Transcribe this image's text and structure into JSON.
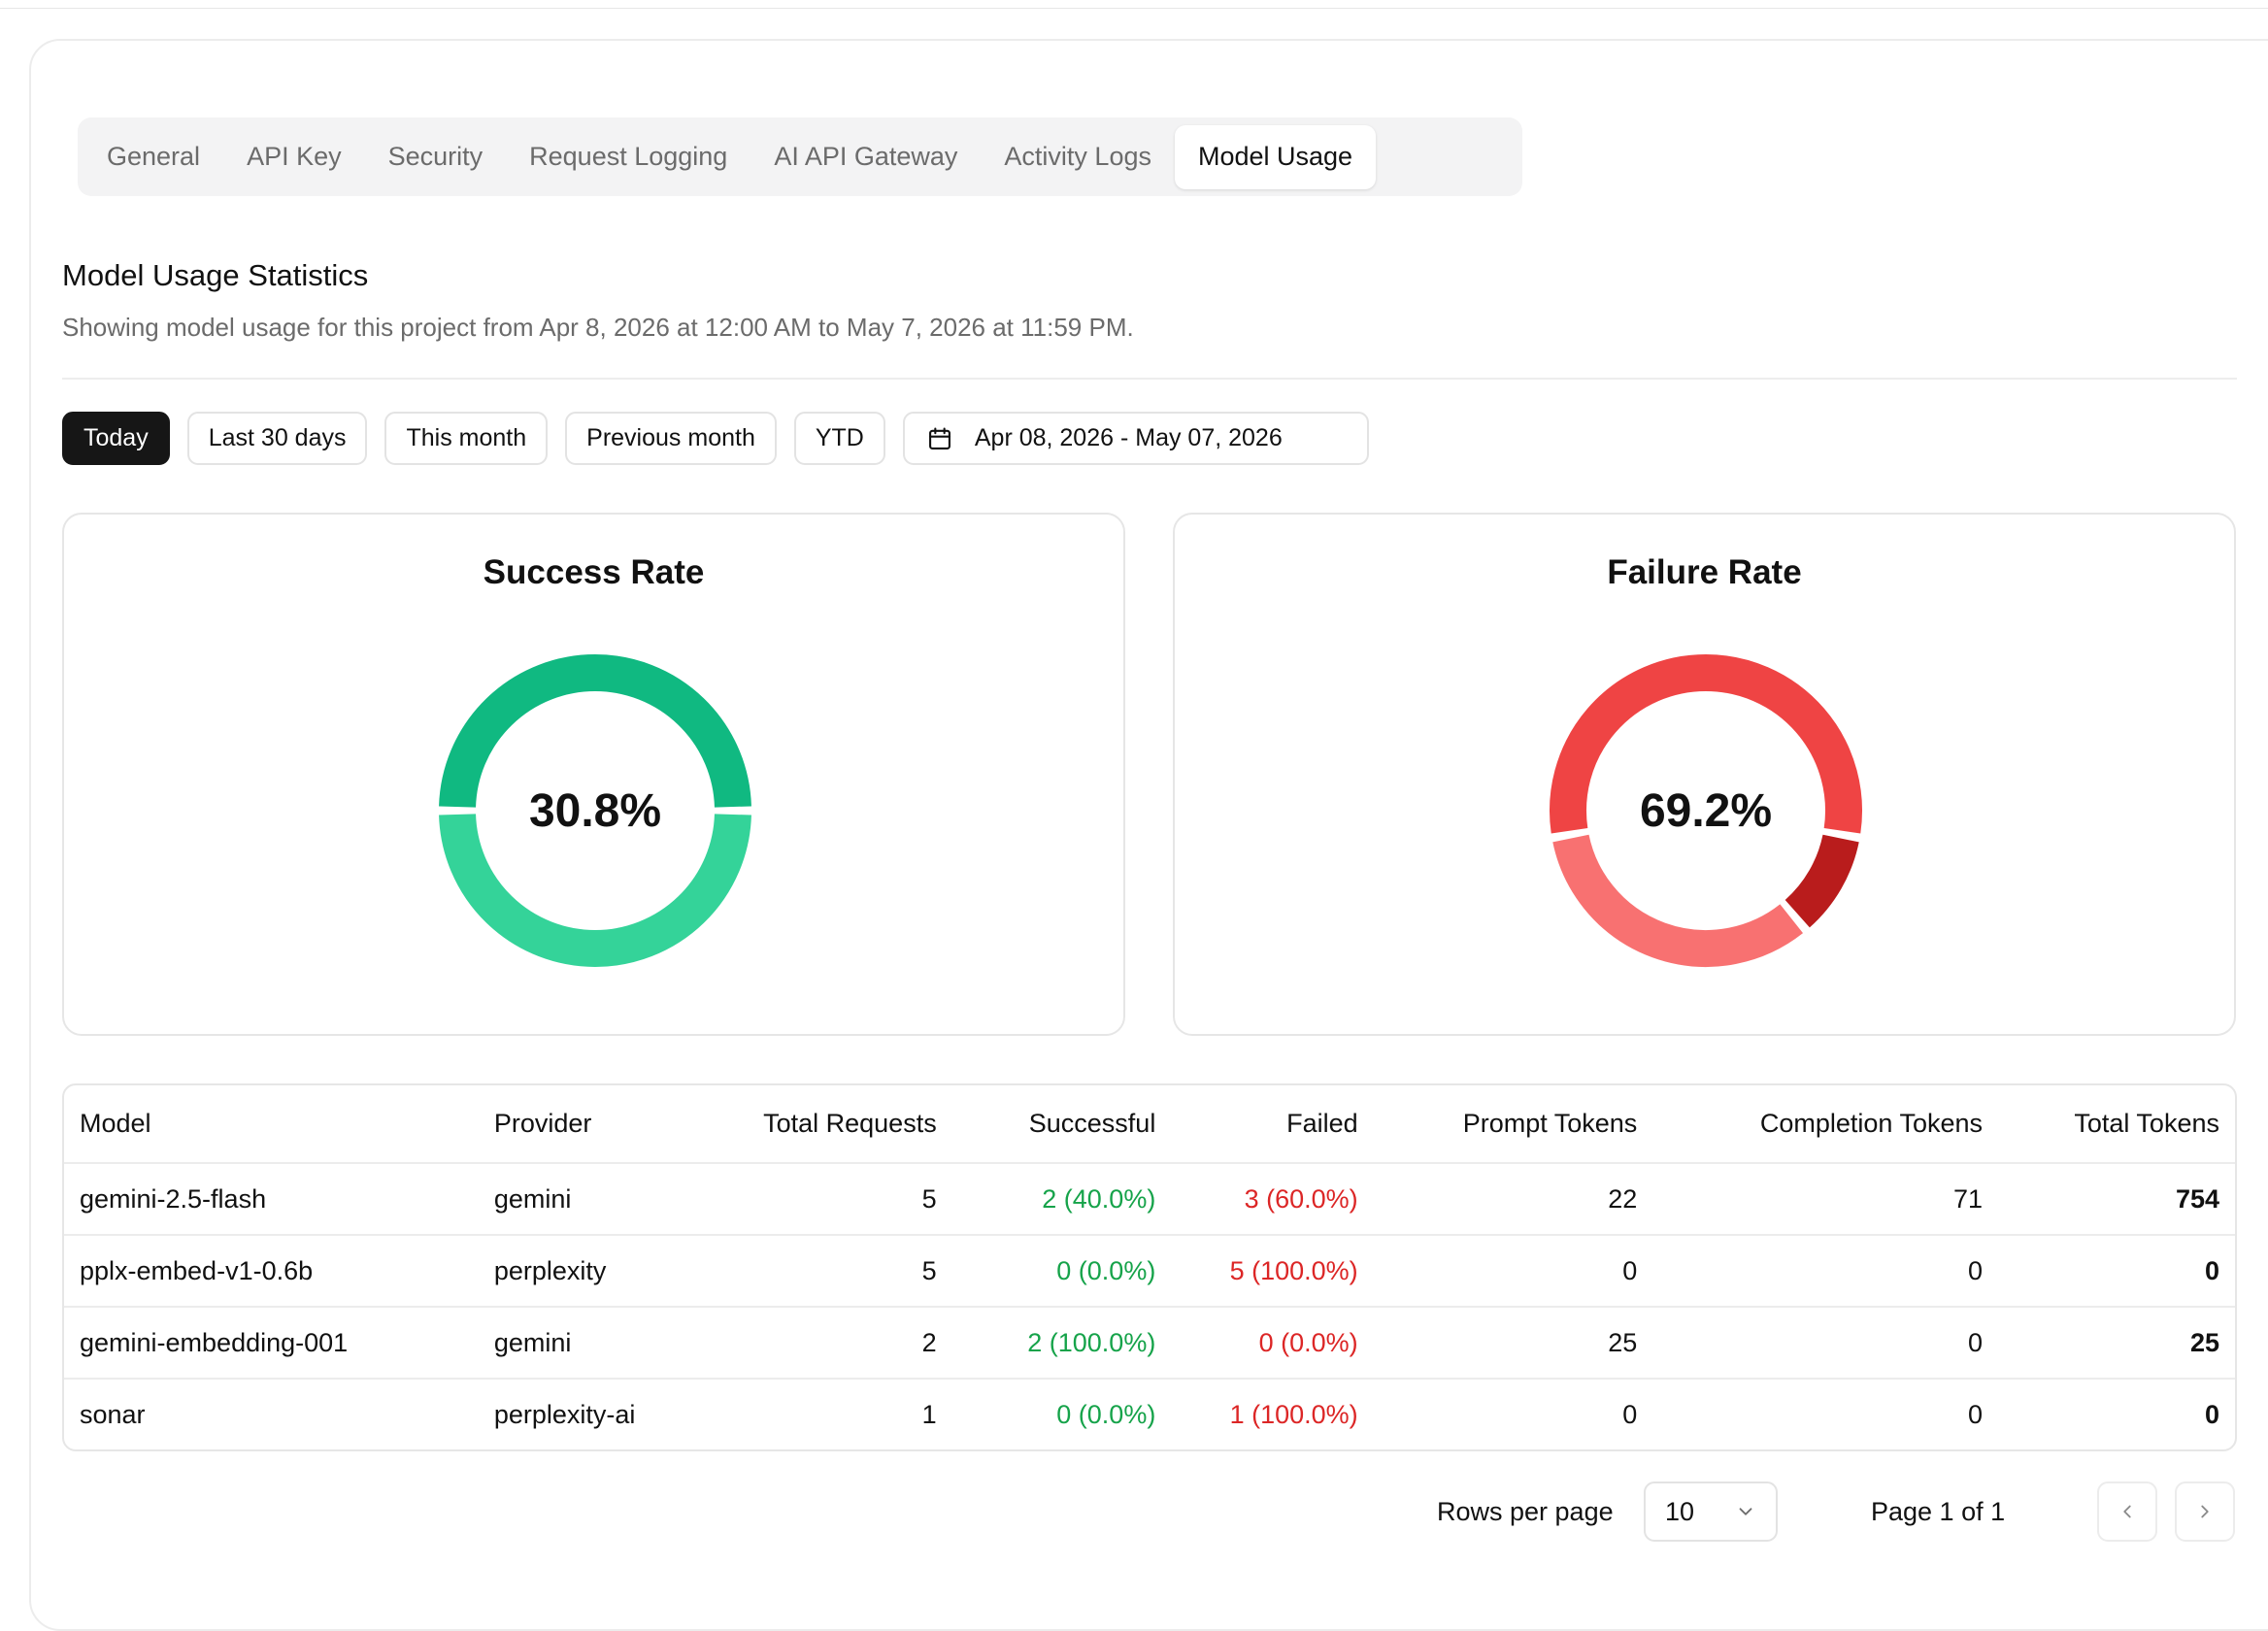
{
  "tabs": [
    "General",
    "API Key",
    "Security",
    "Request Logging",
    "AI API Gateway",
    "Activity Logs",
    "Model Usage"
  ],
  "active_tab": "Model Usage",
  "section": {
    "title": "Model Usage Statistics",
    "subtitle": "Showing model usage for this project from Apr 8, 2026 at 12:00 AM to May 7, 2026 at 11:59 PM."
  },
  "filters": {
    "today": "Today",
    "last30": "Last 30 days",
    "this_month": "This month",
    "previous_month": "Previous month",
    "ytd": "YTD",
    "date_range": "Apr 08, 2026 - May 07, 2026",
    "date_icon": "calendar-icon"
  },
  "charts": {
    "success": {
      "title": "Success Rate",
      "label": "30.8%",
      "colors": [
        "#10b981",
        "#34d399"
      ]
    },
    "failure": {
      "title": "Failure Rate",
      "label": "69.2%",
      "colors": [
        "#ef4444",
        "#b91c1c",
        "#f87171"
      ]
    }
  },
  "chart_data": [
    {
      "type": "pie",
      "title": "Success Rate",
      "center_label": "30.8%",
      "slices": [
        {
          "label": "gemini-2.5-flash",
          "value": 2
        },
        {
          "label": "gemini-embedding-001",
          "value": 2
        }
      ]
    },
    {
      "type": "pie",
      "title": "Failure Rate",
      "center_label": "69.2%",
      "slices": [
        {
          "label": "pplx-embed-v1-0.6b",
          "value": 5
        },
        {
          "label": "sonar",
          "value": 1
        },
        {
          "label": "gemini-2.5-flash",
          "value": 3
        }
      ]
    }
  ],
  "table": {
    "headers": [
      "Model",
      "Provider",
      "Total Requests",
      "Successful",
      "Failed",
      "Prompt Tokens",
      "Completion Tokens",
      "Total Tokens"
    ],
    "rows": [
      [
        "gemini-2.5-flash",
        "gemini",
        "5",
        "2 (40.0%)",
        "3 (60.0%)",
        "22",
        "71",
        "754"
      ],
      [
        "pplx-embed-v1-0.6b",
        "perplexity",
        "5",
        "0 (0.0%)",
        "5 (100.0%)",
        "0",
        "0",
        "0"
      ],
      [
        "gemini-embedding-001",
        "gemini",
        "2",
        "2 (100.0%)",
        "0 (0.0%)",
        "25",
        "0",
        "25"
      ],
      [
        "sonar",
        "perplexity-ai",
        "1",
        "0 (0.0%)",
        "1 (100.0%)",
        "0",
        "0",
        "0"
      ]
    ]
  },
  "pagination": {
    "rows_label": "Rows per page",
    "rows_value": "10",
    "page_label": "Page 1 of 1"
  }
}
